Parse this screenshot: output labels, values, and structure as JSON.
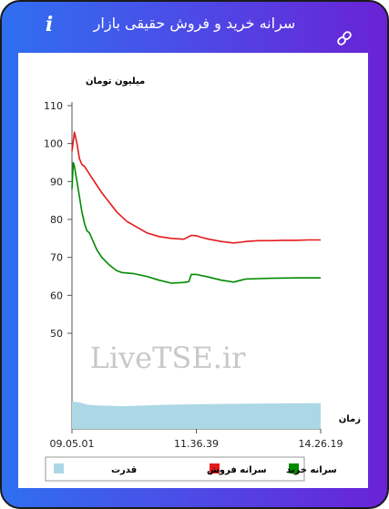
{
  "header": {
    "title": "سرانه خرید و فروش حقیقی بازار",
    "info_icon": "info-icon",
    "link_icon": "link-icon"
  },
  "colors": {
    "sell": "#e41a1c",
    "buy": "#008a00",
    "power": "#acd8e6",
    "header_start": "#2f6ff0",
    "header_end": "#6a22d6"
  },
  "chart_data": {
    "type": "line",
    "ylabel": "میلیون تومان",
    "xlabel": "زمان",
    "watermark": "LiveTSE.ir",
    "yticks": [
      50,
      60,
      70,
      80,
      90,
      100,
      110
    ],
    "ylim": [
      50,
      110
    ],
    "xticks": [
      "09.05.01",
      "11.36.39",
      "14.26.19"
    ],
    "legend_position": "bottom",
    "series": [
      {
        "name": "سرانه فروش",
        "color": "#e41a1c",
        "values": [
          [
            0,
            98
          ],
          [
            1,
            103
          ],
          [
            2,
            100
          ],
          [
            3,
            96
          ],
          [
            4,
            94.5
          ],
          [
            5,
            94
          ],
          [
            6,
            93
          ],
          [
            7,
            92
          ],
          [
            8,
            91
          ],
          [
            10,
            89
          ],
          [
            12,
            87
          ],
          [
            15,
            84.5
          ],
          [
            18,
            82
          ],
          [
            22,
            79.5
          ],
          [
            26,
            78
          ],
          [
            30,
            76.5
          ],
          [
            35,
            75.5
          ],
          [
            40,
            75
          ],
          [
            45,
            74.8
          ],
          [
            48,
            75.8
          ],
          [
            50,
            75.7
          ],
          [
            52,
            75.3
          ],
          [
            55,
            74.8
          ],
          [
            60,
            74.2
          ],
          [
            65,
            73.8
          ],
          [
            68,
            74
          ],
          [
            70,
            74.2
          ],
          [
            75,
            74.4
          ],
          [
            80,
            74.4
          ],
          [
            85,
            74.5
          ],
          [
            90,
            74.5
          ],
          [
            95,
            74.6
          ],
          [
            100,
            74.6
          ]
        ]
      },
      {
        "name": "سرانه خرید",
        "color": "#008a00",
        "values": [
          [
            0,
            88
          ],
          [
            0.5,
            95
          ],
          [
            1,
            94
          ],
          [
            2,
            90
          ],
          [
            3,
            86
          ],
          [
            4,
            82
          ],
          [
            5,
            79
          ],
          [
            6,
            77
          ],
          [
            7,
            76.5
          ],
          [
            8,
            75
          ],
          [
            10,
            72
          ],
          [
            12,
            70
          ],
          [
            15,
            68
          ],
          [
            18,
            66.5
          ],
          [
            20,
            66
          ],
          [
            25,
            65.7
          ],
          [
            30,
            65
          ],
          [
            35,
            64
          ],
          [
            40,
            63.2
          ],
          [
            45,
            63.4
          ],
          [
            47,
            63.6
          ],
          [
            48,
            65.5
          ],
          [
            50,
            65.5
          ],
          [
            55,
            64.8
          ],
          [
            60,
            64
          ],
          [
            65,
            63.5
          ],
          [
            68,
            64
          ],
          [
            70,
            64.3
          ],
          [
            75,
            64.4
          ],
          [
            80,
            64.5
          ],
          [
            90,
            64.6
          ],
          [
            100,
            64.6
          ]
        ]
      },
      {
        "name": "قدرت",
        "color": "#acd8e6",
        "values": [
          [
            0,
            1.75
          ],
          [
            3,
            1.7
          ],
          [
            6,
            1.55
          ],
          [
            10,
            1.5
          ],
          [
            20,
            1.45
          ],
          [
            30,
            1.5
          ],
          [
            40,
            1.55
          ],
          [
            60,
            1.6
          ],
          [
            80,
            1.63
          ],
          [
            100,
            1.65
          ]
        ]
      }
    ],
    "legend": [
      "سرانه خرید",
      "سرانه فروش",
      "قدرت"
    ]
  }
}
